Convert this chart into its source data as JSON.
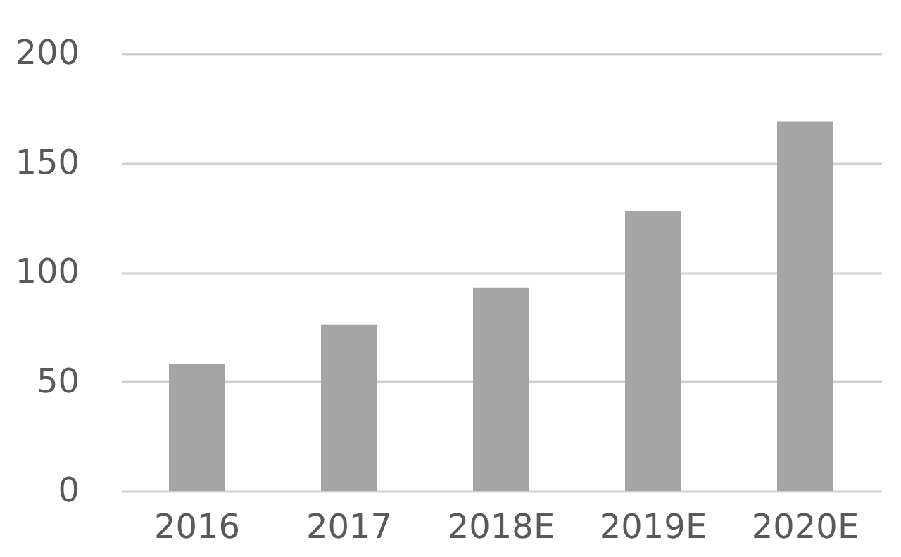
{
  "chart_data": {
    "type": "bar",
    "categories": [
      "2016",
      "2017",
      "2018E",
      "2019E",
      "2020E"
    ],
    "values": [
      58,
      76,
      93,
      128,
      169
    ],
    "color": "#a5a5a5",
    "ylim": [
      0,
      200
    ],
    "yticks": [
      0,
      50,
      100,
      150,
      200
    ],
    "grid": "y"
  }
}
